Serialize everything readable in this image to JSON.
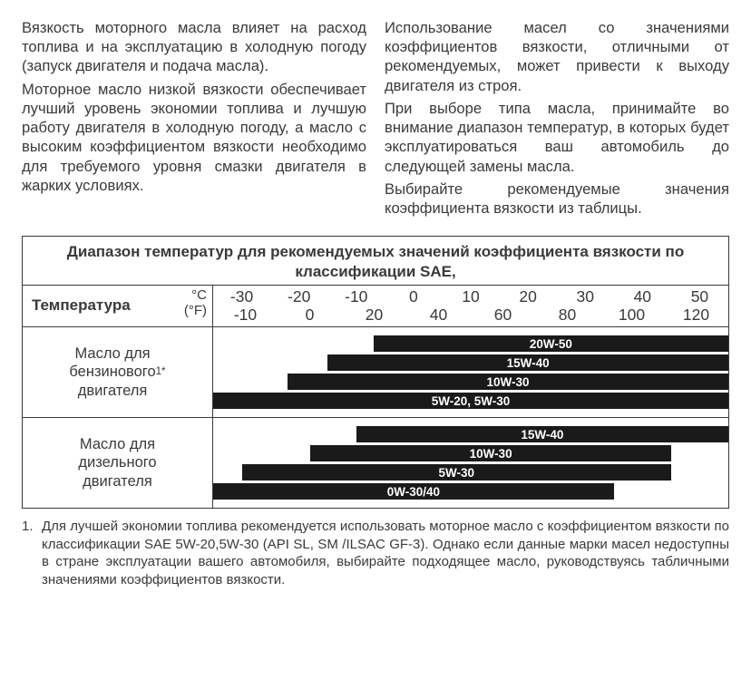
{
  "text": {
    "col1_p1": "Вязкость моторного масла влияет на расход топлива и на эксплуатацию в холодную погоду (запуск двигателя и подача масла).",
    "col1_p2": "Моторное масло низкой вязкости обеспечивает лучший уровень экономии топлива и лучшую работу двигателя в холодную погоду, а масло с высоким коэффициентом вязкости необходимо для требуемого уровня смазки двигателя в жарких условиях.",
    "col2_p1": "Использование масел со значениями коэффициентов вязкости, отличными от рекомендуемых, может привести к выходу двигателя из строя.",
    "col2_p2": "При выборе типа масла, принимайте во внимание диапазон температур, в которых будет эксплуатироваться ваш автомобиль до следующей замены масла.",
    "col2_p3": "Выбирайте рекомендуемые значения коэффициента вязкости из таблицы."
  },
  "chart": {
    "title": "Диапазон температур для рекомендуемых значений коэффициента вязкости по классификации SAE,",
    "temp_label": "Температура",
    "unit_c": "°C",
    "unit_f": "(°F)",
    "ticks_c": [
      "-30",
      "-20",
      "-10",
      "0",
      "10",
      "20",
      "30",
      "40",
      "50"
    ],
    "ticks_f": [
      "-10",
      "0",
      "20",
      "40",
      "60",
      "80",
      "100",
      "120"
    ],
    "scale_min_c": -35,
    "scale_max_c": 55,
    "sections": [
      {
        "label_html": "Масло для<br>бензинового<br>двигателя <sup>1*</sup>",
        "bars": [
          {
            "label": "20W-50",
            "from_c": -7,
            "to_c": 55
          },
          {
            "label": "15W-40",
            "from_c": -15,
            "to_c": 55
          },
          {
            "label": "10W-30",
            "from_c": -22,
            "to_c": 55
          },
          {
            "label": "5W-20, 5W-30",
            "from_c": -35,
            "to_c": 55
          }
        ]
      },
      {
        "label_html": "Масло для<br>дизельного<br>двигателя",
        "bars": [
          {
            "label": "15W-40",
            "from_c": -10,
            "to_c": 55
          },
          {
            "label": "10W-30",
            "from_c": -18,
            "to_c": 45
          },
          {
            "label": "5W-30",
            "from_c": -30,
            "to_c": 45
          },
          {
            "label": "0W-30/40",
            "from_c": -35,
            "to_c": 35
          }
        ]
      }
    ]
  },
  "footnote": {
    "num": "1.",
    "text": "Для лучшей экономии топлива рекомендуется использовать моторное масло с коэффициентом вязкости по классификации SAE 5W-20,5W-30 (API SL, SM /ILSAC GF-3). Однако если данные марки масел недоступны в стране эксплуатации вашего автомобиля, выбирайте подходящее масло, руководствуясь табличными значениями коэффициентов вязкости."
  },
  "colors": {
    "text": "#3a3a3a",
    "bar_bg": "#1a1a1a",
    "bar_text": "#ffffff",
    "rule": "#3a3a3a",
    "page_bg": "#ffffff"
  }
}
